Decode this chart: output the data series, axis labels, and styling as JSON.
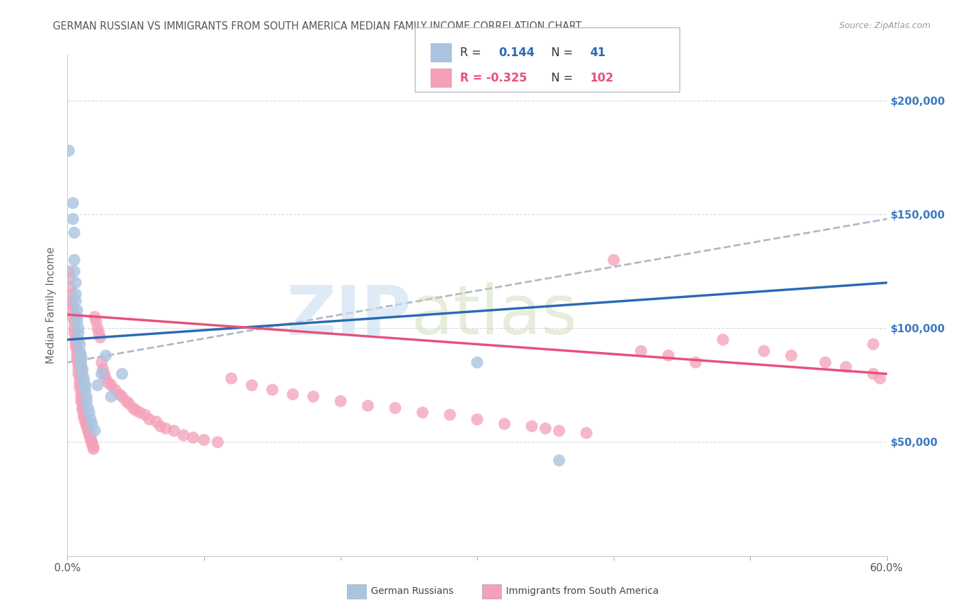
{
  "title": "GERMAN RUSSIAN VS IMMIGRANTS FROM SOUTH AMERICA MEDIAN FAMILY INCOME CORRELATION CHART",
  "source": "Source: ZipAtlas.com",
  "ylabel": "Median Family Income",
  "yticks": [
    0,
    50000,
    100000,
    150000,
    200000
  ],
  "legend1_label": "German Russians",
  "legend2_label": "Immigrants from South America",
  "blue_scatter_x": [
    0.001,
    0.004,
    0.004,
    0.005,
    0.005,
    0.005,
    0.006,
    0.006,
    0.006,
    0.007,
    0.007,
    0.007,
    0.008,
    0.008,
    0.008,
    0.009,
    0.009,
    0.01,
    0.01,
    0.01,
    0.01,
    0.011,
    0.011,
    0.012,
    0.012,
    0.013,
    0.013,
    0.014,
    0.014,
    0.015,
    0.016,
    0.017,
    0.018,
    0.02,
    0.022,
    0.025,
    0.028,
    0.032,
    0.04,
    0.3,
    0.36
  ],
  "blue_scatter_y": [
    178000,
    155000,
    148000,
    142000,
    130000,
    125000,
    120000,
    115000,
    112000,
    108000,
    105000,
    103000,
    100000,
    98000,
    95000,
    93000,
    90000,
    88000,
    87000,
    85000,
    83000,
    82000,
    80000,
    78000,
    76000,
    75000,
    73000,
    70000,
    68000,
    65000,
    63000,
    60000,
    58000,
    55000,
    75000,
    80000,
    88000,
    70000,
    80000,
    85000,
    42000
  ],
  "pink_scatter_x": [
    0.001,
    0.002,
    0.002,
    0.003,
    0.003,
    0.004,
    0.004,
    0.004,
    0.005,
    0.005,
    0.005,
    0.006,
    0.006,
    0.006,
    0.007,
    0.007,
    0.007,
    0.008,
    0.008,
    0.008,
    0.009,
    0.009,
    0.009,
    0.01,
    0.01,
    0.01,
    0.011,
    0.011,
    0.011,
    0.012,
    0.012,
    0.013,
    0.013,
    0.014,
    0.014,
    0.015,
    0.015,
    0.016,
    0.016,
    0.017,
    0.017,
    0.018,
    0.018,
    0.019,
    0.019,
    0.02,
    0.021,
    0.022,
    0.023,
    0.024,
    0.025,
    0.026,
    0.027,
    0.028,
    0.03,
    0.032,
    0.035,
    0.038,
    0.04,
    0.043,
    0.045,
    0.048,
    0.05,
    0.053,
    0.057,
    0.06,
    0.065,
    0.068,
    0.072,
    0.078,
    0.085,
    0.092,
    0.1,
    0.11,
    0.12,
    0.135,
    0.15,
    0.165,
    0.18,
    0.2,
    0.22,
    0.24,
    0.26,
    0.28,
    0.3,
    0.32,
    0.34,
    0.35,
    0.36,
    0.38,
    0.4,
    0.42,
    0.44,
    0.46,
    0.48,
    0.51,
    0.53,
    0.555,
    0.57,
    0.59,
    0.59,
    0.595
  ],
  "pink_scatter_y": [
    125000,
    122000,
    118000,
    115000,
    112000,
    110000,
    108000,
    105000,
    103000,
    100000,
    98000,
    96000,
    94000,
    92000,
    90000,
    88000,
    86000,
    84000,
    82000,
    80000,
    78000,
    76000,
    74000,
    72000,
    70000,
    68000,
    67000,
    65000,
    64000,
    62000,
    61000,
    60000,
    59000,
    58000,
    57000,
    56000,
    55000,
    54000,
    53000,
    52000,
    51000,
    50000,
    49000,
    48000,
    47000,
    105000,
    103000,
    100000,
    98000,
    96000,
    85000,
    82000,
    80000,
    78000,
    76000,
    75000,
    73000,
    71000,
    70000,
    68000,
    67000,
    65000,
    64000,
    63000,
    62000,
    60000,
    59000,
    57000,
    56000,
    55000,
    53000,
    52000,
    51000,
    50000,
    78000,
    75000,
    73000,
    71000,
    70000,
    68000,
    66000,
    65000,
    63000,
    62000,
    60000,
    58000,
    57000,
    56000,
    55000,
    54000,
    130000,
    90000,
    88000,
    85000,
    95000,
    90000,
    88000,
    85000,
    83000,
    80000,
    93000,
    78000
  ],
  "blue_line_x": [
    0.0,
    0.6
  ],
  "blue_line_y": [
    95000,
    120000
  ],
  "pink_line_x": [
    0.0,
    0.6
  ],
  "pink_line_y": [
    106000,
    80000
  ],
  "dashed_line_x": [
    0.0,
    0.6
  ],
  "dashed_line_y": [
    85000,
    148000
  ],
  "scatter_blue_color": "#aac4e0",
  "scatter_pink_color": "#f4a0b8",
  "line_blue_color": "#2a6ab5",
  "line_pink_color": "#e8507a",
  "line_dashed_color": "#b0b8c8",
  "legend_text_color": "#333333",
  "legend_val_blue": "#2a6ab5",
  "legend_val_pink": "#e8507a",
  "right_axis_color": "#3a7abf",
  "background_color": "#ffffff",
  "grid_color": "#d8d8e8",
  "title_color": "#555555",
  "xmin": 0.0,
  "xmax": 0.6,
  "ymin": 0,
  "ymax": 220000
}
